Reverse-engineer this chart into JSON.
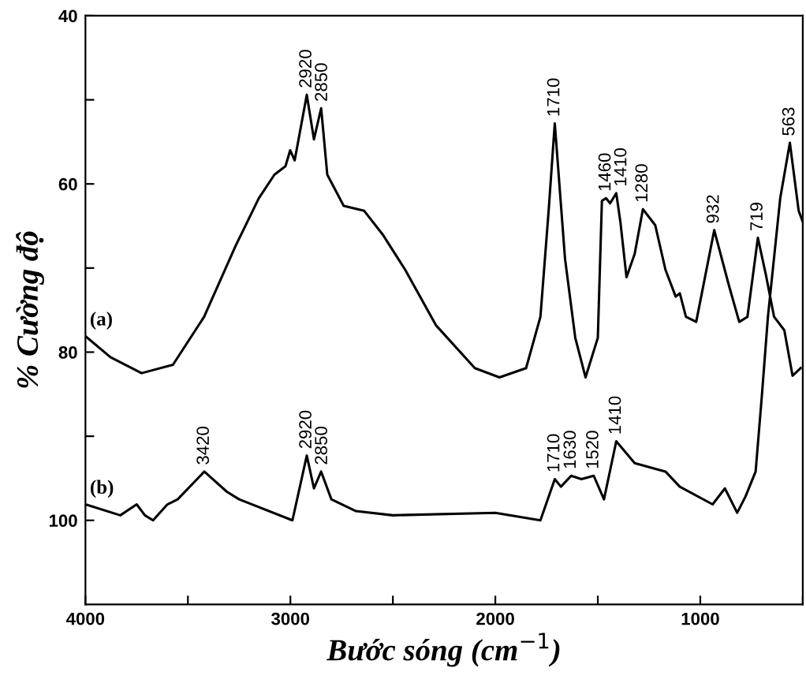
{
  "chart_data": {
    "type": "line",
    "xlabel": "Bước sóng (cm$^{−1}$)",
    "ylabel": "% Cường độ",
    "xlim": [
      4000,
      500
    ],
    "ylim": [
      110,
      40
    ],
    "xticks": [
      4000,
      {
        "value": 3500,
        "label": null
      },
      3000,
      {
        "value": 2500,
        "label": null
      },
      2000,
      {
        "value": 1500,
        "label": null
      },
      1000,
      {
        "value": 500,
        "label": null
      }
    ],
    "yticks": [
      40,
      {
        "value": 50,
        "label": null
      },
      60,
      {
        "value": 70,
        "label": null
      },
      80,
      {
        "value": 90,
        "label": null
      },
      100
    ],
    "grid": false,
    "legend": false,
    "marker": "none",
    "line_style": "solid",
    "series": [
      {
        "name": "(a)",
        "color": "#000000",
        "x": [
          4000,
          3878,
          3726,
          3573,
          3421,
          3268,
          3154,
          3078,
          3024,
          3001,
          2979,
          2920,
          2885,
          2850,
          2820,
          2740,
          2640,
          2550,
          2440,
          2290,
          2100,
          1980,
          1850,
          1780,
          1740,
          1710,
          1660,
          1610,
          1560,
          1500,
          1480,
          1460,
          1440,
          1410,
          1390,
          1360,
          1320,
          1280,
          1220,
          1170,
          1120,
          1100,
          1070,
          1020,
          932,
          860,
          810,
          770,
          719,
          680,
          640,
          590,
          550,
          510
        ],
        "values": [
          78.1,
          80.6,
          82.5,
          81.5,
          75.8,
          67.4,
          61.7,
          58.9,
          57.9,
          56,
          57.2,
          49.4,
          54.7,
          51,
          58.9,
          62.6,
          63.2,
          66,
          70.2,
          76.8,
          81.9,
          83,
          81.9,
          75.8,
          63.2,
          52.8,
          68.9,
          78.3,
          83,
          78.3,
          62,
          61.7,
          62.3,
          61.1,
          64.5,
          71.1,
          68.3,
          63,
          64.9,
          70.2,
          73.4,
          73,
          75.8,
          76.4,
          65.5,
          72.1,
          76.4,
          75.8,
          66.4,
          70.8,
          75.8,
          77.4,
          82.8,
          81.9
        ]
      },
      {
        "name": "(b)",
        "color": "#000000",
        "x": [
          4000,
          3830,
          3750,
          3710,
          3670,
          3600,
          3550,
          3420,
          3310,
          3250,
          2990,
          2920,
          2885,
          2850,
          2800,
          2680,
          2500,
          2000,
          1780,
          1710,
          1680,
          1630,
          1580,
          1520,
          1470,
          1410,
          1320,
          1170,
          1100,
          940,
          880,
          820,
          780,
          730,
          700,
          670,
          610,
          563,
          520,
          500
        ],
        "values": [
          98.1,
          99.4,
          98.1,
          99.4,
          100,
          98.1,
          97.5,
          94.2,
          96.6,
          97.5,
          100,
          92.3,
          96.2,
          94.2,
          97.5,
          98.9,
          99.4,
          99.1,
          100,
          95.1,
          96,
          94.7,
          95.1,
          94.7,
          97.5,
          90.6,
          93.2,
          94.2,
          96,
          98.1,
          96.2,
          99.1,
          97.2,
          94.2,
          85.3,
          75.8,
          61.7,
          55.1,
          63.2,
          64.5
        ]
      }
    ],
    "annotations": [
      {
        "text": "2920",
        "x": 2920,
        "y": 49.4
      },
      {
        "text": "2850",
        "x": 2850,
        "y": 51
      },
      {
        "text": "1710",
        "x": 1710,
        "y": 52.8
      },
      {
        "text": "1460",
        "x": 1460,
        "y": 61.7
      },
      {
        "text": "1410",
        "x": 1410,
        "y": 61.1
      },
      {
        "text": "1280",
        "x": 1280,
        "y": 63
      },
      {
        "text": "932",
        "x": 932,
        "y": 65.5
      },
      {
        "text": "719",
        "x": 719,
        "y": 66.4
      },
      {
        "text": "563",
        "x": 563,
        "y": 55.1
      },
      {
        "text": "3420",
        "x": 3420,
        "y": 94.2
      },
      {
        "text": "2920",
        "x": 2920,
        "y": 92.3
      },
      {
        "text": "2850",
        "x": 2850,
        "y": 94.2
      },
      {
        "text": "1710",
        "x": 1710,
        "y": 95.1
      },
      {
        "text": "1630",
        "x": 1630,
        "y": 94.7
      },
      {
        "text": "1520",
        "x": 1520,
        "y": 94.7
      },
      {
        "text": "1410",
        "x": 1410,
        "y": 90.6
      }
    ]
  }
}
